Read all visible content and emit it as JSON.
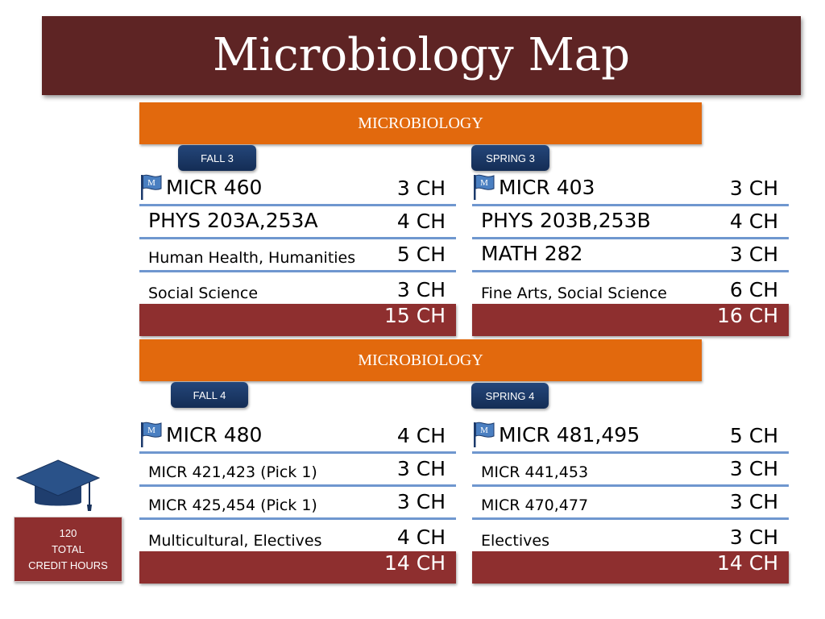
{
  "title": "Microbiology Map",
  "blocks": [
    {
      "banner": "MICROBIOLOGY",
      "semesters": [
        {
          "term": "FALL 3",
          "flag_letter": "M",
          "courses": [
            {
              "name": "MICR 460",
              "ch": "3 CH"
            },
            {
              "name": "PHYS 203A,253A",
              "ch": "4 CH"
            },
            {
              "name": "Human Health, Humanities",
              "ch": "5 CH"
            },
            {
              "name": "Social Science",
              "ch": "3 CH"
            }
          ],
          "total": "15 CH"
        },
        {
          "term": "SPRING 3",
          "flag_letter": "M",
          "courses": [
            {
              "name": "MICR 403",
              "ch": "3 CH"
            },
            {
              "name": "PHYS 203B,253B",
              "ch": "4 CH"
            },
            {
              "name": "MATH 282",
              "ch": "3 CH"
            },
            {
              "name": "Fine Arts, Social Science",
              "ch": "6 CH"
            }
          ],
          "total": "16 CH"
        }
      ]
    },
    {
      "banner": "MICROBIOLOGY",
      "semesters": [
        {
          "term": "FALL 4",
          "flag_letter": "M",
          "courses": [
            {
              "name": "MICR 480",
              "ch": "4 CH"
            },
            {
              "name": "MICR 421,423 (Pick 1)",
              "ch": "3 CH"
            },
            {
              "name": "MICR 425,454 (Pick 1)",
              "ch": "3 CH"
            },
            {
              "name": "Multicultural, Electives",
              "ch": "4 CH"
            }
          ],
          "total": "14 CH"
        },
        {
          "term": "SPRING 4",
          "flag_letter": "M",
          "courses": [
            {
              "name": "MICR 481,495",
              "ch": "5 CH"
            },
            {
              "name": "MICR 441,453",
              "ch": "3 CH"
            },
            {
              "name": "MICR 470,477",
              "ch": "3 CH"
            },
            {
              "name": "Electives",
              "ch": "3 CH"
            }
          ],
          "total": "14 CH"
        }
      ]
    }
  ],
  "credit_summary": {
    "line1": "120",
    "line2": "TOTAL",
    "line3": "CREDIT HOURS"
  },
  "icons": {
    "flag": "flag-icon",
    "graduation": "graduation-cap-icon"
  },
  "colors": {
    "title_bg": "#5e2424",
    "banner": "#e2690d",
    "term_tab": "#1c3a6b",
    "total_bar": "#8e2f2f",
    "row_line": "#6f97cf"
  }
}
